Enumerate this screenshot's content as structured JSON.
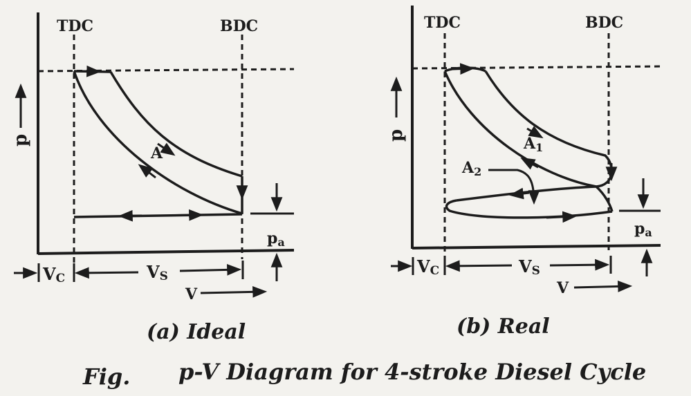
{
  "panel_a": {
    "tdc": "TDC",
    "bdc": "BDC",
    "p_axis": "p",
    "area": "A",
    "pa": "p",
    "pa_sub": "a",
    "vc": "V",
    "vc_sub": "C",
    "vs": "V",
    "vs_sub": "S",
    "v_axis": "V",
    "caption": "(a) Ideal"
  },
  "panel_b": {
    "tdc": "TDC",
    "bdc": "BDC",
    "p_axis": "p",
    "a1": "A",
    "a1_sub": "1",
    "a2": "A",
    "a2_sub": "2",
    "pa": "p",
    "pa_sub": "a",
    "vc": "V",
    "vc_sub": "C",
    "vs": "V",
    "vs_sub": "S",
    "v_axis": "V",
    "caption": "(b) Real"
  },
  "figure": {
    "fig_label": "Fig.",
    "title": "p-V Diagram for 4-stroke Diesel Cycle"
  },
  "colors": {
    "ink": "#1c1c1c",
    "paper": "#f3f2ee"
  }
}
